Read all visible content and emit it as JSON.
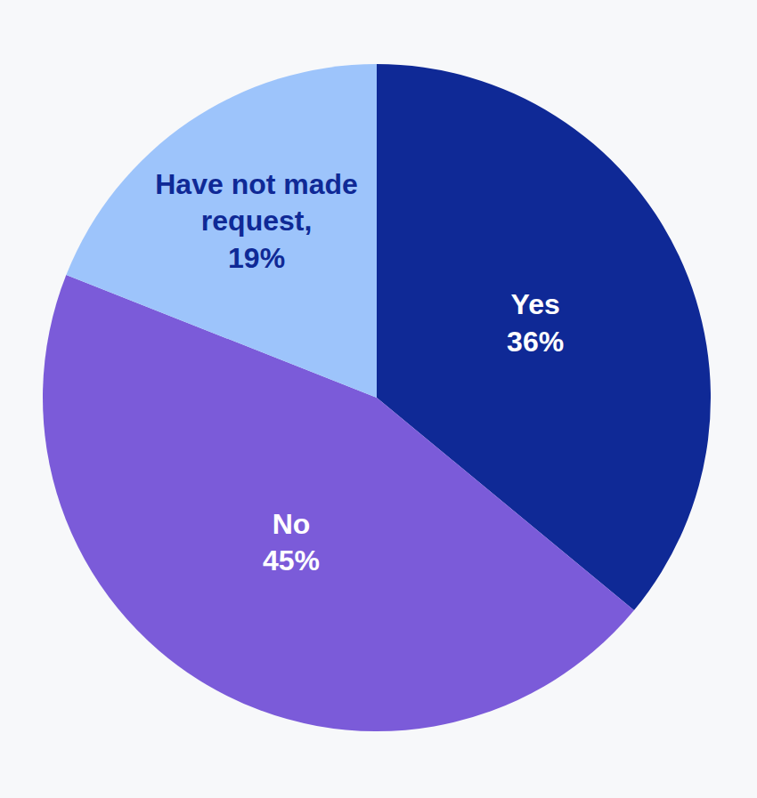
{
  "chart_data": {
    "type": "pie",
    "categories": [
      "Yes",
      "No",
      "Have not made request,"
    ],
    "values": [
      36,
      45,
      19
    ],
    "value_labels": [
      "36%",
      "45%",
      "19%"
    ],
    "colors": [
      "#0f2996",
      "#7b5bd9",
      "#9dc4fb"
    ],
    "data_labels": true
  }
}
